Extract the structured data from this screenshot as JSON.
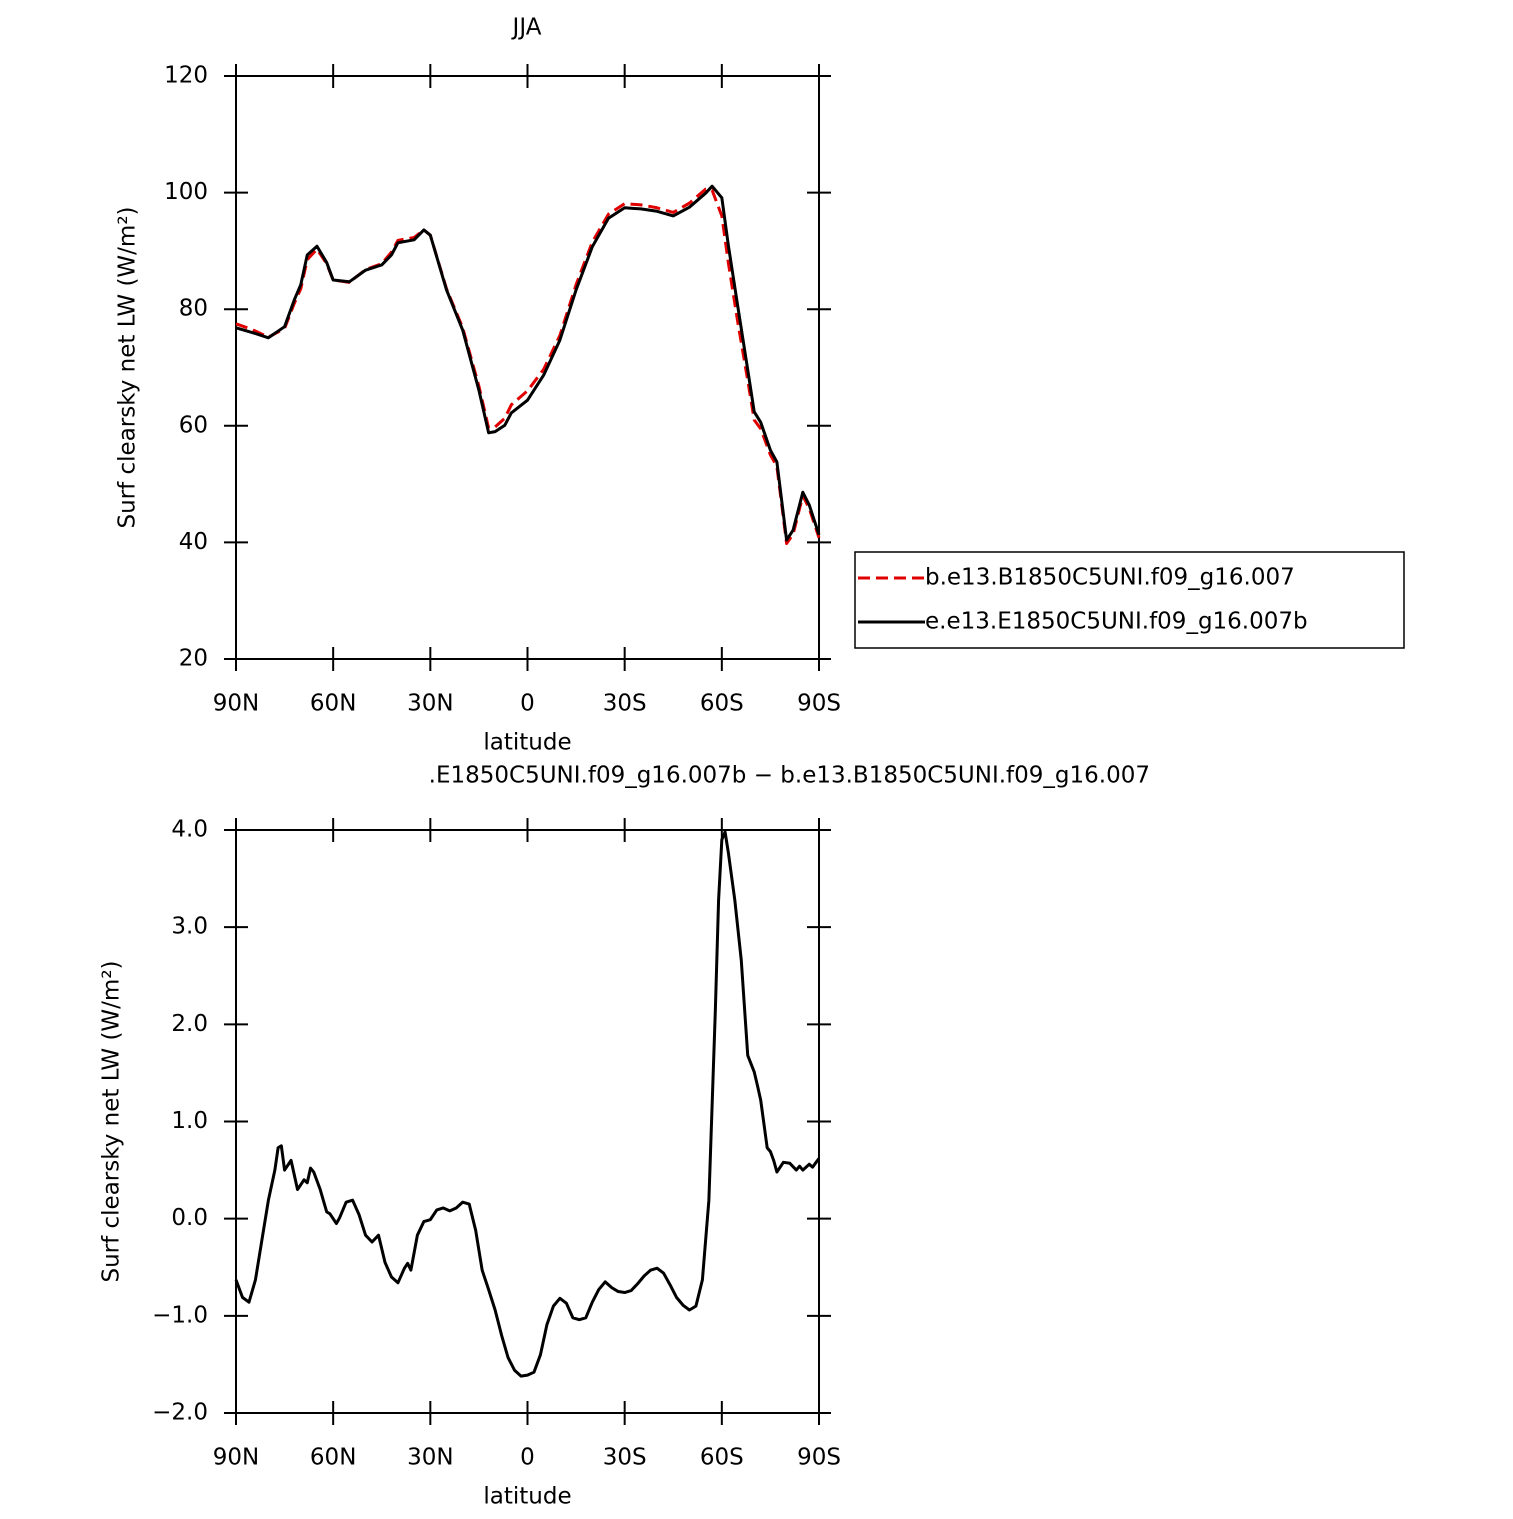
{
  "chart_data": [
    {
      "type": "line",
      "title": "JJA",
      "x_label": "latitude",
      "y_label": "Surf clearsky net LW (W/m²)",
      "x": [
        90,
        85,
        80,
        75,
        72,
        70,
        68,
        65,
        62,
        60,
        55,
        50,
        45,
        42,
        40,
        35,
        32,
        30,
        25,
        20,
        15,
        12,
        10,
        7,
        5,
        0,
        -5,
        -10,
        -15,
        -20,
        -25,
        -30,
        -35,
        -40,
        -45,
        -50,
        -55,
        -57,
        -60,
        -62,
        -65,
        -68,
        -70,
        -72,
        -75,
        -77,
        -80,
        -82,
        -85,
        -87,
        -90
      ],
      "series": [
        {
          "name": "b.e13.B1850C5UNI.f09_g16.007",
          "color": "#e00000",
          "dash": true,
          "values": [
            77.5,
            76.5,
            75.2,
            76.7,
            81,
            83.5,
            88.5,
            90.3,
            87.8,
            85,
            84.6,
            86.8,
            87.8,
            89.8,
            91.8,
            92.3,
            93.6,
            92.7,
            83.5,
            76.8,
            66.8,
            59.6,
            59.8,
            61.3,
            63.6,
            66,
            69.7,
            75.5,
            84.2,
            91.5,
            96.3,
            98.1,
            97.9,
            97.4,
            96.6,
            98.2,
            100.6,
            100.4,
            96,
            88,
            77.5,
            67.8,
            61,
            59.5,
            55,
            53,
            39.8,
            41.4,
            48,
            45.8,
            40.8
          ]
        },
        {
          "name": "e.e13.E1850C5UNI.f09_g16.007b",
          "color": "#000000",
          "dash": false,
          "values": [
            76.8,
            76,
            75.1,
            77,
            81.6,
            84.2,
            89.3,
            90.8,
            88,
            85,
            84.7,
            86.7,
            87.6,
            89.3,
            91.4,
            91.9,
            93.6,
            92.7,
            83.3,
            76.4,
            66.1,
            58.8,
            59,
            60.1,
            62.2,
            64.4,
            68.7,
            74.7,
            83.3,
            90.7,
            95.6,
            97.4,
            97.2,
            96.8,
            96,
            97.5,
            99.9,
            101.1,
            99.1,
            91,
            80.2,
            69.6,
            62.4,
            60.6,
            55.8,
            53.8,
            40.4,
            42.1,
            48.6,
            46.4,
            41.3
          ]
        }
      ],
      "xlim": [
        90,
        -90
      ],
      "xticks": [
        {
          "value": 90,
          "label": "90N"
        },
        {
          "value": 60,
          "label": "60N"
        },
        {
          "value": 30,
          "label": "30N"
        },
        0,
        {
          "value": -30,
          "label": "30S"
        },
        {
          "value": -60,
          "label": "60S"
        },
        {
          "value": -90,
          "label": "90S"
        }
      ],
      "ylim": [
        20,
        120
      ],
      "yticks": [
        20,
        40,
        60,
        80,
        100,
        120
      ],
      "legend": "right"
    },
    {
      "type": "line",
      "title": ".E1850C5UNI.f09_g16.007b − b.e13.B1850C5UNI.f09_g16.007",
      "x_label": "latitude",
      "y_label": "Surf clearsky net LW (W/m²)",
      "color": "#000000",
      "x": [
        90,
        88,
        86,
        84,
        82,
        80,
        78,
        77,
        76,
        75,
        73,
        71,
        69,
        68,
        67,
        66,
        64,
        62,
        61,
        59,
        58,
        56,
        54,
        52,
        50,
        48,
        46,
        44,
        42,
        40,
        38,
        37,
        36,
        34,
        32,
        30,
        28,
        26,
        24,
        22,
        20,
        18,
        16,
        14,
        12,
        10,
        8,
        6,
        4,
        2,
        0,
        -2,
        -4,
        -6,
        -8,
        -10,
        -12,
        -14,
        -16,
        -18,
        -20,
        -22,
        -24,
        -26,
        -28,
        -30,
        -32,
        -34,
        -36,
        -38,
        -40,
        -42,
        -44,
        -46,
        -48,
        -50,
        -52,
        -54,
        -56,
        -58,
        -59,
        -60,
        -61,
        -62,
        -64,
        -66,
        -68,
        -70,
        -71,
        -72,
        -74,
        -75,
        -76,
        -77,
        -78,
        -79,
        -81,
        -83,
        -84,
        -85,
        -87,
        -88,
        -90
      ],
      "values": [
        -0.63,
        -0.81,
        -0.86,
        -0.63,
        -0.22,
        0.19,
        0.5,
        0.73,
        0.75,
        0.5,
        0.6,
        0.3,
        0.4,
        0.37,
        0.52,
        0.48,
        0.3,
        0.07,
        0.05,
        -0.05,
        0.01,
        0.17,
        0.19,
        0.04,
        -0.17,
        -0.24,
        -0.17,
        -0.45,
        -0.6,
        -0.66,
        -0.51,
        -0.46,
        -0.53,
        -0.17,
        -0.03,
        -0.01,
        0.09,
        0.11,
        0.08,
        0.11,
        0.17,
        0.15,
        -0.12,
        -0.53,
        -0.73,
        -0.94,
        -1.2,
        -1.43,
        -1.56,
        -1.62,
        -1.61,
        -1.58,
        -1.4,
        -1.09,
        -0.9,
        -0.82,
        -0.87,
        -1.02,
        -1.04,
        -1.02,
        -0.86,
        -0.73,
        -0.65,
        -0.71,
        -0.75,
        -0.76,
        -0.74,
        -0.67,
        -0.59,
        -0.53,
        -0.51,
        -0.56,
        -0.68,
        -0.81,
        -0.89,
        -0.94,
        -0.9,
        -0.63,
        0.19,
        2.15,
        3.28,
        3.9,
        3.98,
        3.77,
        3.28,
        2.66,
        1.68,
        1.51,
        1.37,
        1.22,
        0.73,
        0.69,
        0.6,
        0.48,
        0.53,
        0.58,
        0.57,
        0.5,
        0.54,
        0.5,
        0.56,
        0.53,
        0.62
      ],
      "xlim": [
        90,
        -90
      ],
      "xticks": [
        {
          "value": 90,
          "label": "90N"
        },
        {
          "value": 60,
          "label": "60N"
        },
        {
          "value": 30,
          "label": "30N"
        },
        0,
        {
          "value": -30,
          "label": "30S"
        },
        {
          "value": -60,
          "label": "60S"
        },
        {
          "value": -90,
          "label": "90S"
        }
      ],
      "ylim": [
        -2,
        4
      ],
      "yticks": [
        {
          "value": -2,
          "label": "−2.0"
        },
        {
          "value": -1,
          "label": "−1.0"
        },
        {
          "value": 0,
          "label": "0.0"
        },
        {
          "value": 1,
          "label": "1.0"
        },
        {
          "value": 2,
          "label": "2.0"
        },
        {
          "value": 3,
          "label": "3.0"
        },
        {
          "value": 4,
          "label": "4.0"
        }
      ]
    }
  ]
}
